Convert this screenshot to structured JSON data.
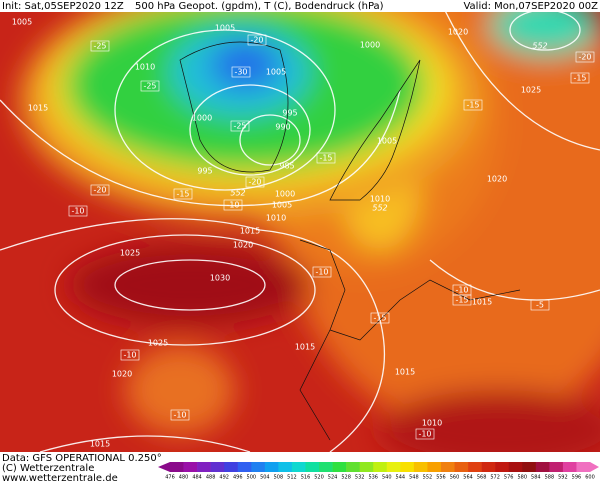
{
  "header": {
    "init": "Init: Sat,05SEP2020 12Z",
    "title": "500 hPa Geopot. (gpdm), T (C), Bodendruck (hPa)",
    "valid": "Valid: Mon,07SEP2020 00Z"
  },
  "footer": {
    "data": "Data: GFS OPERATIONAL 0.250°",
    "copyright": "(C) Wetterzentrale",
    "url": "www.wetterzentrale.de"
  },
  "isobar_labels": [
    "1005",
    "1005",
    "1010",
    "1000",
    "1005",
    "1015",
    "1000",
    "995",
    "990",
    "995",
    "985",
    "1005",
    "1020",
    "1025",
    "1020",
    "1000",
    "1005",
    "1010",
    "1015",
    "1020",
    "1010",
    "1025",
    "1030",
    "1025",
    "1020",
    "1015",
    "1015",
    "1015",
    "1010",
    "1015"
  ],
  "temperature_labels": [
    "-25",
    "-20",
    "-30",
    "-25",
    "-20",
    "-15",
    "-15",
    "-25",
    "-15",
    "-20",
    "-15",
    "-10",
    "-20",
    "-10",
    "-10",
    "-15",
    "-10",
    "-15",
    "-5",
    "-10",
    "-10",
    "-10"
  ],
  "height_labels": [
    "552",
    "552",
    "552"
  ],
  "colorbar": {
    "labels": [
      476,
      480,
      484,
      488,
      492,
      496,
      500,
      504,
      508,
      512,
      516,
      520,
      524,
      528,
      532,
      536,
      540,
      544,
      548,
      552,
      556,
      560,
      564,
      568,
      572,
      576,
      580,
      584,
      588,
      592,
      596,
      600
    ],
    "colors": [
      "#8a0a8a",
      "#9a10a8",
      "#8020c0",
      "#6030d0",
      "#4040e0",
      "#3060f0",
      "#2080f0",
      "#10a0f0",
      "#10c0e8",
      "#10d8d0",
      "#10e0a0",
      "#20e070",
      "#30e040",
      "#60e030",
      "#90e820",
      "#c0f010",
      "#e8f010",
      "#f8e000",
      "#f8c000",
      "#f8a000",
      "#f08010",
      "#e86010",
      "#e04010",
      "#d02810",
      "#c01810",
      "#a81010",
      "#901010",
      "#a01040",
      "#c02070",
      "#e040a0",
      "#f070c0"
    ]
  }
}
